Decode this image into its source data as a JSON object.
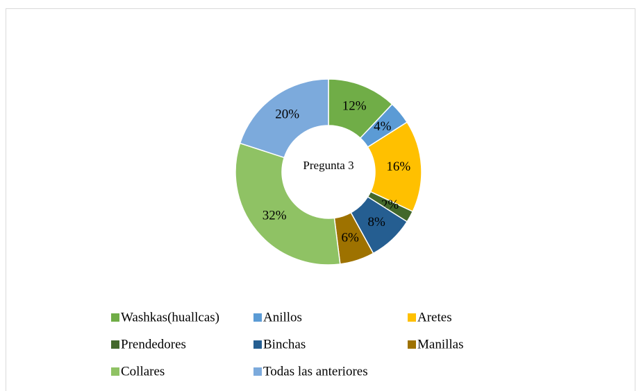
{
  "chart_data": {
    "type": "donut",
    "title": "Pregunta 3",
    "categories": [
      "Washkas(huallcas)",
      "Anillos",
      "Aretes",
      "Prendedores",
      "Binchas",
      "Manillas",
      "Collares",
      "Todas las anteriores"
    ],
    "values": [
      12,
      4,
      16,
      2,
      8,
      6,
      32,
      20
    ],
    "value_labels": [
      "12%",
      "4%",
      "16%",
      "2%",
      "8%",
      "6%",
      "32%",
      "20%"
    ],
    "colors": [
      "#70ad47",
      "#5b9bd5",
      "#ffc000",
      "#43682b",
      "#255e91",
      "#9e7200",
      "#8fc264",
      "#7caadc"
    ],
    "legend": "bottom"
  }
}
